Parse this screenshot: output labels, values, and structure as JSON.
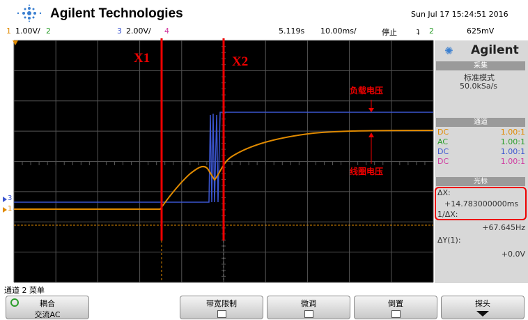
{
  "header": {
    "brand": "Agilent Technologies",
    "datetime": "Sun Jul 17 15:24:51 2016"
  },
  "status_bar": {
    "ch1_num": "1",
    "ch1_scale": "1.00V/",
    "ch2_num": "2",
    "ch3_num": "3",
    "ch3_scale": "2.00V/",
    "ch4_num": "4",
    "time_pos": "5.119s",
    "time_scale": "10.00ms/",
    "run_state": "停止",
    "trigger_icon": "ʇ",
    "trigger_ch": "2",
    "trigger_level": "625mV"
  },
  "screen": {
    "cursor_x1": "X1",
    "cursor_x2": "X2",
    "load_voltage": "负载电压",
    "coil_voltage": "线圈电压",
    "marker_ch3": "3",
    "marker_ch1": "1"
  },
  "side_panel": {
    "logo_text": "Agilent",
    "acquire": {
      "title": "采集",
      "mode": "标准模式",
      "rate": "50.0kSa/s"
    },
    "channels": {
      "title": "通道",
      "rows": [
        {
          "coupling": "DC",
          "probe": "1.00:1"
        },
        {
          "coupling": "AC",
          "probe": "1.00:1"
        },
        {
          "coupling": "DC",
          "probe": "1.00:1"
        },
        {
          "coupling": "DC",
          "probe": "1.00:1"
        }
      ]
    },
    "cursors": {
      "title": "光标",
      "dx_label": "ΔX:",
      "dx_value": "+14.783000000ms",
      "inv_dx_label": "1/ΔX:",
      "inv_dx_value": "+67.645Hz",
      "dy_label": "ΔY(1):",
      "dy_value": "+0.0V"
    }
  },
  "softkeys": {
    "menu_title": "通道 2 菜单",
    "keys": [
      {
        "label": "耦合",
        "value": "交流AC"
      },
      {
        "label": "带宽限制"
      },
      {
        "label": "微调"
      },
      {
        "label": "倒置"
      },
      {
        "label": "探头"
      }
    ]
  }
}
